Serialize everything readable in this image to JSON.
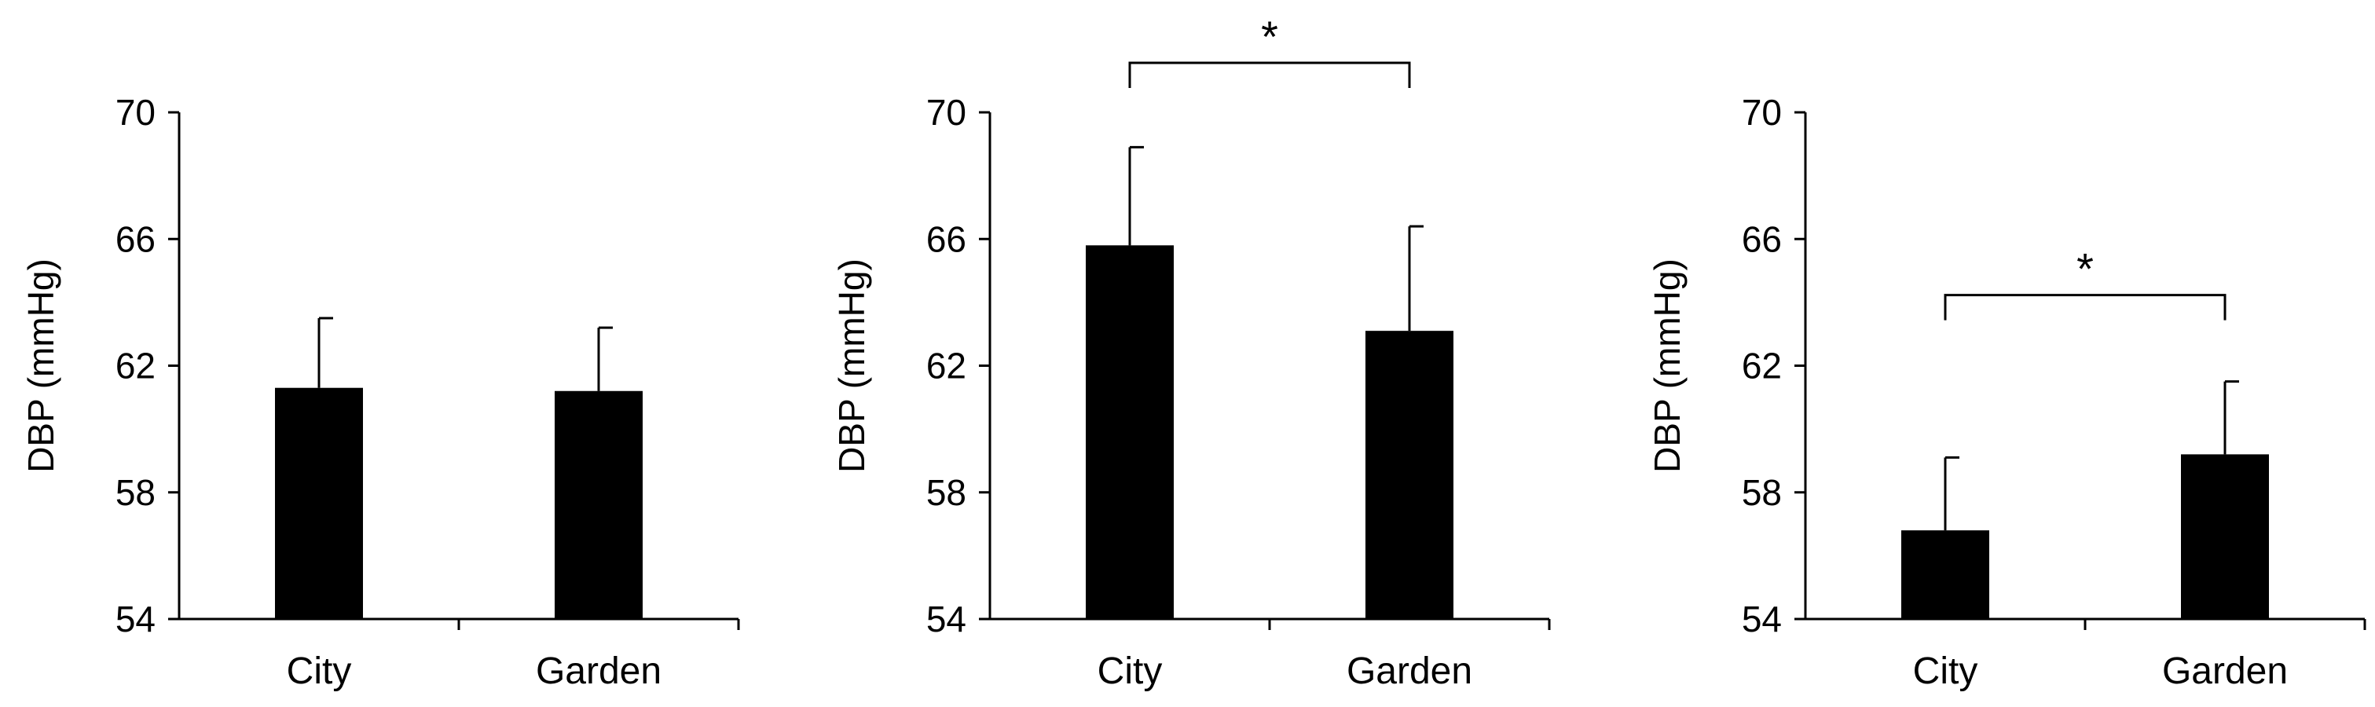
{
  "chart_data": [
    {
      "type": "bar",
      "categories": [
        "City",
        "Garden"
      ],
      "values": [
        61.3,
        61.2
      ],
      "errors": [
        2.2,
        2.0
      ],
      "ylabel": "DBP (mmHg)",
      "ylim": [
        54,
        70
      ],
      "yticks": [
        "54",
        "58",
        "62",
        "66",
        "70"
      ],
      "significance": null,
      "bar_color": "#000000",
      "grid": false
    },
    {
      "type": "bar",
      "categories": [
        "City",
        "Garden"
      ],
      "values": [
        65.8,
        63.1
      ],
      "errors": [
        3.1,
        3.3
      ],
      "ylabel": "DBP (mmHg)",
      "ylim": [
        54,
        70
      ],
      "yticks": [
        "54",
        "58",
        "62",
        "66",
        "70"
      ],
      "significance": "*",
      "bar_color": "#000000",
      "grid": false
    },
    {
      "type": "bar",
      "categories": [
        "City",
        "Garden"
      ],
      "values": [
        56.8,
        59.2
      ],
      "errors": [
        2.3,
        2.3
      ],
      "ylabel": "DBP (mmHg)",
      "ylim": [
        54,
        70
      ],
      "yticks": [
        "54",
        "58",
        "62",
        "66",
        "70"
      ],
      "significance": "*",
      "bar_color": "#000000",
      "grid": false
    }
  ]
}
